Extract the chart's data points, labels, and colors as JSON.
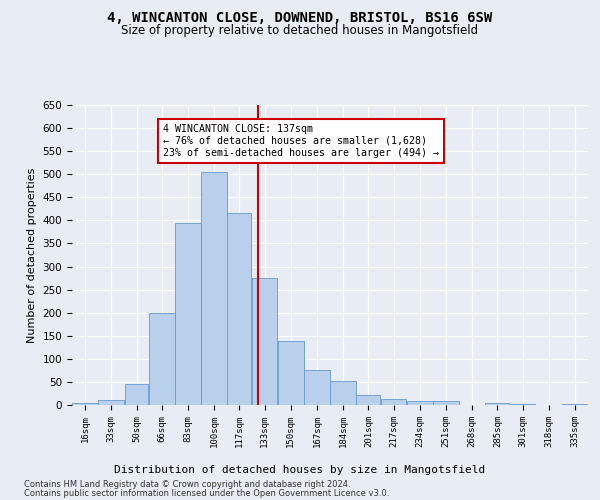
{
  "title": "4, WINCANTON CLOSE, DOWNEND, BRISTOL, BS16 6SW",
  "subtitle": "Size of property relative to detached houses in Mangotsfield",
  "xlabel": "Distribution of detached houses by size in Mangotsfield",
  "ylabel": "Number of detached properties",
  "footer_line1": "Contains HM Land Registry data © Crown copyright and database right 2024.",
  "footer_line2": "Contains public sector information licensed under the Open Government Licence v3.0.",
  "annotation_line1": "4 WINCANTON CLOSE: 137sqm",
  "annotation_line2": "← 76% of detached houses are smaller (1,628)",
  "annotation_line3": "23% of semi-detached houses are larger (494) →",
  "property_line_x": 137,
  "bar_edges": [
    16,
    33,
    50,
    66,
    83,
    100,
    117,
    133,
    150,
    167,
    184,
    201,
    217,
    234,
    251,
    268,
    285,
    301,
    318,
    335,
    352
  ],
  "bar_values": [
    5,
    10,
    45,
    200,
    395,
    505,
    415,
    275,
    138,
    75,
    52,
    22,
    12,
    9,
    8,
    0,
    5,
    3,
    0,
    3
  ],
  "bar_color": "#b8d0eb",
  "bar_edgecolor": "#6699cc",
  "annotation_box_color": "#cc0000",
  "vline_color": "#cc0000",
  "bg_color": "#e8edf5",
  "grid_color": "#ffffff",
  "ylim": [
    0,
    650
  ],
  "yticks": [
    0,
    50,
    100,
    150,
    200,
    250,
    300,
    350,
    400,
    450,
    500,
    550,
    600,
    650
  ]
}
